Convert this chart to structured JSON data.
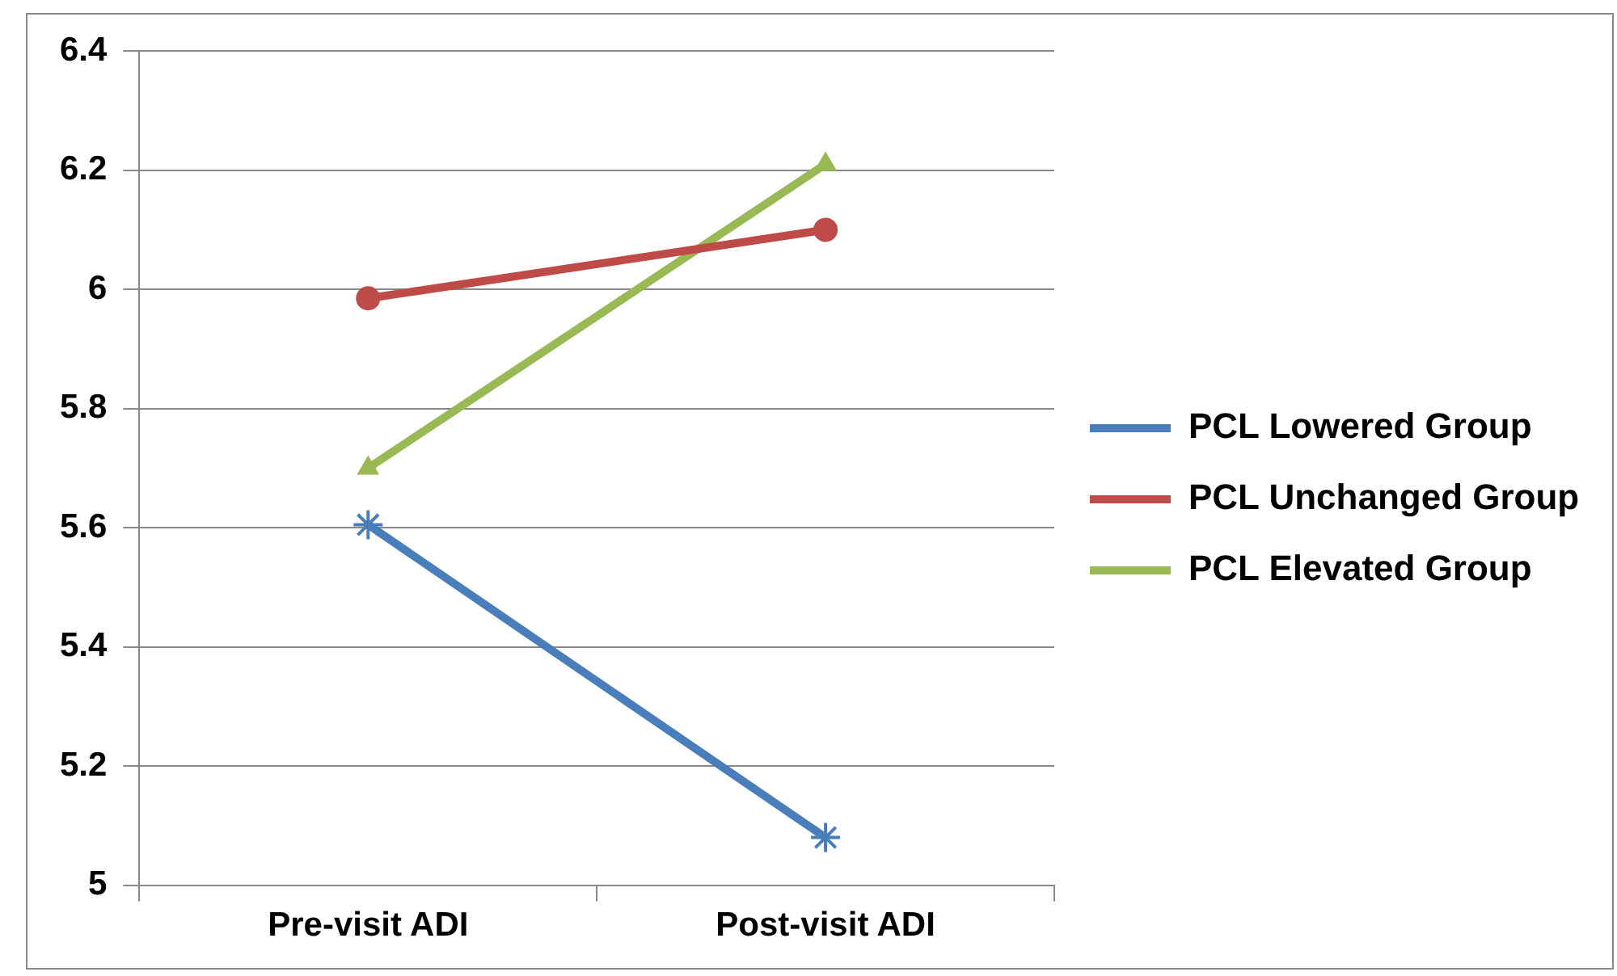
{
  "chart_data": {
    "type": "line",
    "categories": [
      "Pre-visit ADI",
      "Post-visit ADI"
    ],
    "series": [
      {
        "name": "PCL Lowered Group",
        "color": "#4a7ebb",
        "values": [
          5.605,
          5.08
        ],
        "marker": "cross"
      },
      {
        "name": "PCL Unchanged Group",
        "color": "#be4b48",
        "values": [
          5.985,
          6.1
        ],
        "marker": "circle"
      },
      {
        "name": "PCL Elevated Group",
        "color": "#98b954",
        "values": [
          5.7,
          6.21
        ],
        "marker": "triangle"
      }
    ],
    "ylim": [
      5,
      6.4
    ],
    "yticks": [
      5,
      5.2,
      5.4,
      5.6,
      5.8,
      6,
      6.2,
      6.4
    ],
    "grid": "y",
    "legend": "right",
    "line_style": "solid"
  }
}
